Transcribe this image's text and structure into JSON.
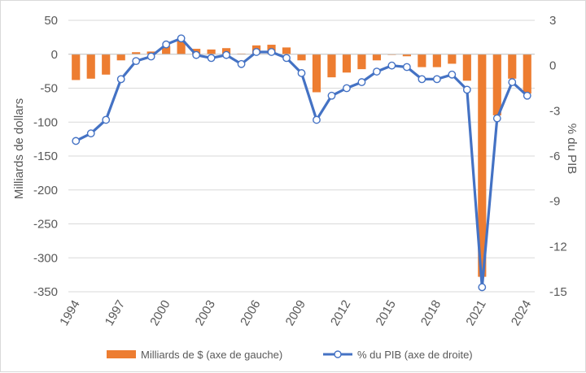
{
  "chart_data": {
    "type": "bar+line",
    "title": "",
    "x": [
      1994,
      1995,
      1996,
      1997,
      1998,
      1999,
      2000,
      2001,
      2002,
      2003,
      2004,
      2005,
      2006,
      2007,
      2008,
      2009,
      2010,
      2011,
      2012,
      2013,
      2014,
      2015,
      2016,
      2017,
      2018,
      2019,
      2020,
      2021,
      2022,
      2023,
      2024
    ],
    "x_ticks": [
      "1994",
      "1997",
      "2000",
      "2003",
      "2006",
      "2009",
      "2012",
      "2015",
      "2018",
      "2021",
      "2024"
    ],
    "y_left": {
      "label": "Milliards de dollars",
      "ylim": [
        -350,
        50
      ],
      "ticks": [
        "50",
        "0",
        "-50",
        "-100",
        "-150",
        "-200",
        "-250",
        "-300",
        "-350"
      ]
    },
    "y_right": {
      "label": "% du PIB",
      "ylim": [
        -15,
        3
      ],
      "ticks": [
        "3",
        "0",
        "-3",
        "-6",
        "-9",
        "-12",
        "-15"
      ]
    },
    "grid": "horizontal",
    "legend_position": "bottom",
    "series": [
      {
        "name": "Milliards de $ (axe de gauche)",
        "type": "bar",
        "axis": "left",
        "color": "#ED7D31",
        "values": [
          -38,
          -36,
          -30,
          -9,
          3,
          4,
          12,
          20,
          8,
          7,
          9,
          1,
          13,
          14,
          10,
          -9,
          -56,
          -34,
          -27,
          -22,
          -9,
          -1,
          -3,
          -19,
          -19,
          -14,
          -39,
          -328,
          -90,
          -36,
          -58
        ]
      },
      {
        "name": "% du PIB (axe de droite)",
        "type": "line",
        "axis": "right",
        "color": "#4472C4",
        "values": [
          -5.0,
          -4.5,
          -3.6,
          -0.9,
          0.3,
          0.6,
          1.4,
          1.8,
          0.7,
          0.5,
          0.7,
          0.1,
          0.9,
          0.9,
          0.5,
          -0.5,
          -3.6,
          -2.0,
          -1.5,
          -1.1,
          -0.4,
          0.0,
          -0.1,
          -0.9,
          -0.9,
          -0.6,
          -1.6,
          -14.7,
          -3.5,
          -1.1,
          -2.0
        ]
      }
    ]
  }
}
